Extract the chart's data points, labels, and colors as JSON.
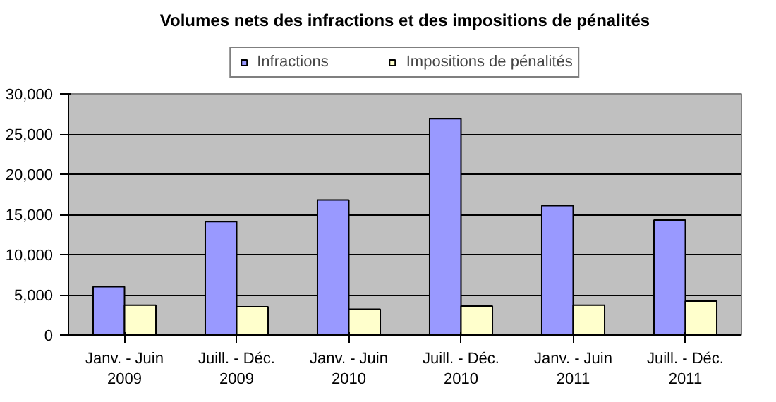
{
  "chart_data": {
    "type": "bar",
    "title": "Volumes nets des infractions et des impositions de pénalités",
    "categories": [
      "Janv. - Juin\n2009",
      "Juill. - Déc.\n2009",
      "Janv. - Juin\n2010",
      "Juill. - Déc.\n2010",
      "Janv. - Juin\n2011",
      "Juill. - Déc.\n2011"
    ],
    "series": [
      {
        "name": "Infractions",
        "color": "#9999ff",
        "values": [
          6000,
          14100,
          16800,
          26900,
          16100,
          14300
        ]
      },
      {
        "name": "Impositions de pénalités",
        "color": "#ffffcc",
        "values": [
          3700,
          3500,
          3200,
          3600,
          3700,
          4200
        ]
      }
    ],
    "ylim": [
      0,
      30000
    ],
    "yticks": [
      {
        "value": 0,
        "label": "0"
      },
      {
        "value": 5000,
        "label": "5,000"
      },
      {
        "value": 10000,
        "label": "10,000"
      },
      {
        "value": 15000,
        "label": "15,000"
      },
      {
        "value": 20000,
        "label": "20,000"
      },
      {
        "value": 25000,
        "label": "25,000"
      },
      {
        "value": 30000,
        "label": "30,000"
      }
    ],
    "grid": "y",
    "legend": "top"
  }
}
